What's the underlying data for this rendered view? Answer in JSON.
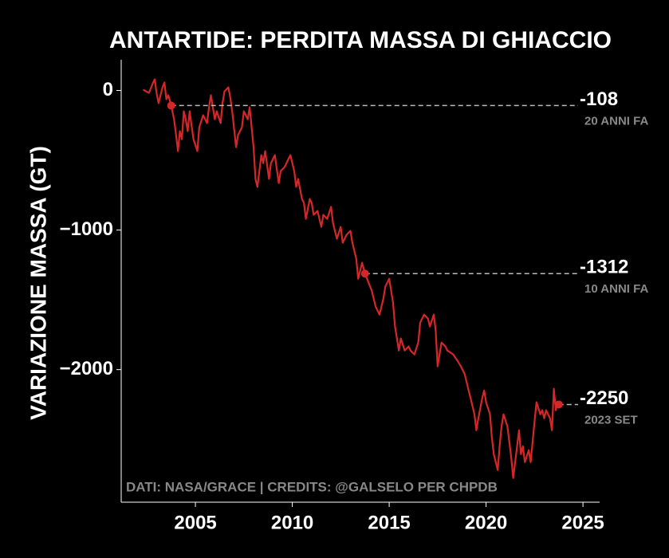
{
  "chart_data": {
    "type": "line",
    "title": "ANTARTIDE: PERDITA MASSA DI GHIACCIO",
    "ylabel": "VARIAZIONE MASSA (GT)",
    "note": "DATI: NASA/GRACE | CREDITS: @GALSELO PER CHPDB",
    "xlim": [
      2001.17,
      2025.86
    ],
    "ylim": [
      -2950,
      220
    ],
    "xticks": [
      2005,
      2010,
      2015,
      2020,
      2025
    ],
    "yticks": [
      0,
      {
        "value": -1000,
        "label": "−1000"
      },
      {
        "value": -2000,
        "label": "−2000"
      }
    ],
    "grid": false,
    "x": [
      2002.3,
      2002.6,
      2002.8,
      2002.9,
      2003.0,
      2003.1,
      2003.3,
      2003.4,
      2003.5,
      2003.6,
      2003.75,
      2003.9,
      2004.0,
      2004.1,
      2004.2,
      2004.3,
      2004.4,
      2004.5,
      2004.6,
      2004.7,
      2004.9,
      2005.1,
      2005.2,
      2005.4,
      2005.6,
      2005.7,
      2005.8,
      2006.0,
      2006.1,
      2006.3,
      2006.4,
      2006.5,
      2006.7,
      2006.8,
      2006.9,
      2007.1,
      2007.2,
      2007.4,
      2007.5,
      2007.7,
      2007.8,
      2008.0,
      2008.1,
      2008.2,
      2008.4,
      2008.5,
      2008.6,
      2008.8,
      2008.9,
      2009.1,
      2009.3,
      2009.4,
      2009.6,
      2009.8,
      2009.9,
      2010.1,
      2010.2,
      2010.3,
      2010.5,
      2010.6,
      2010.7,
      2010.9,
      2011.0,
      2011.1,
      2011.3,
      2011.5,
      2011.6,
      2011.8,
      2012.0,
      2012.1,
      2012.3,
      2012.5,
      2012.6,
      2012.8,
      2013.0,
      2013.1,
      2013.3,
      2013.4,
      2013.6,
      2013.75,
      2014.1,
      2014.3,
      2014.5,
      2014.7,
      2014.8,
      2015.0,
      2015.2,
      2015.3,
      2015.5,
      2015.6,
      2015.8,
      2016.0,
      2016.1,
      2016.3,
      2016.5,
      2016.6,
      2016.8,
      2017.0,
      2017.1,
      2017.3,
      2017.4,
      2017.5,
      2017.7,
      2017.9,
      2018.0,
      2018.3,
      2018.5,
      2018.7,
      2018.9,
      2019.1,
      2019.2,
      2019.4,
      2019.5,
      2019.6,
      2019.8,
      2019.9,
      2020.0,
      2020.2,
      2020.3,
      2020.4,
      2020.6,
      2020.7,
      2020.8,
      2020.9,
      2021.1,
      2021.2,
      2021.3,
      2021.4,
      2021.6,
      2021.7,
      2021.8,
      2021.9,
      2022.0,
      2022.2,
      2022.3,
      2022.4,
      2022.5,
      2022.6,
      2022.8,
      2022.9,
      2023.0,
      2023.1,
      2023.3,
      2023.4,
      2023.5,
      2023.6,
      2023.67,
      2023.75
    ],
    "series": [
      {
        "name": "Antartide",
        "color": "#d62728",
        "values": [
          6,
          -17,
          51,
          80,
          -23,
          -91,
          23,
          57,
          -63,
          -34,
          -108,
          -206,
          -320,
          -434,
          -291,
          -349,
          -149,
          -206,
          -291,
          -149,
          -349,
          -434,
          -263,
          -177,
          -234,
          -120,
          -34,
          -206,
          -149,
          -234,
          -91,
          -6,
          23,
          -51,
          -149,
          -406,
          -320,
          -263,
          -149,
          -206,
          -120,
          -406,
          -634,
          -691,
          -463,
          -520,
          -434,
          -634,
          -520,
          -463,
          -663,
          -577,
          -549,
          -491,
          -463,
          -577,
          -691,
          -634,
          -777,
          -806,
          -920,
          -777,
          -806,
          -891,
          -863,
          -977,
          -891,
          -920,
          -834,
          -949,
          -1063,
          -977,
          -1091,
          -1034,
          -1006,
          -1091,
          -1206,
          -1349,
          -1234,
          -1312,
          -1434,
          -1549,
          -1606,
          -1491,
          -1406,
          -1349,
          -1520,
          -1691,
          -1863,
          -1777,
          -1863,
          -1834,
          -1863,
          -1891,
          -1806,
          -1663,
          -1606,
          -1634,
          -1691,
          -1606,
          -1720,
          -1977,
          -1806,
          -1834,
          -1863,
          -1891,
          -1931,
          -1977,
          -2034,
          -2149,
          -2206,
          -2320,
          -2434,
          -2349,
          -2206,
          -2149,
          -2234,
          -2320,
          -2491,
          -2606,
          -2720,
          -2549,
          -2406,
          -2320,
          -2406,
          -2520,
          -2634,
          -2777,
          -2549,
          -2434,
          -2606,
          -2549,
          -2663,
          -2577,
          -2663,
          -2520,
          -2377,
          -2234,
          -2320,
          -2291,
          -2349,
          -2291,
          -2349,
          -2434,
          -2137,
          -2291,
          -2240,
          -2250
        ]
      }
    ],
    "annotations": [
      {
        "x": 2003.75,
        "value": -108,
        "label": "20 ANNI FA"
      },
      {
        "x": 2013.75,
        "value": -1312,
        "label": "10 ANNI FA"
      },
      {
        "x": 2023.75,
        "value": -2250,
        "label": "2023 SET"
      }
    ]
  }
}
